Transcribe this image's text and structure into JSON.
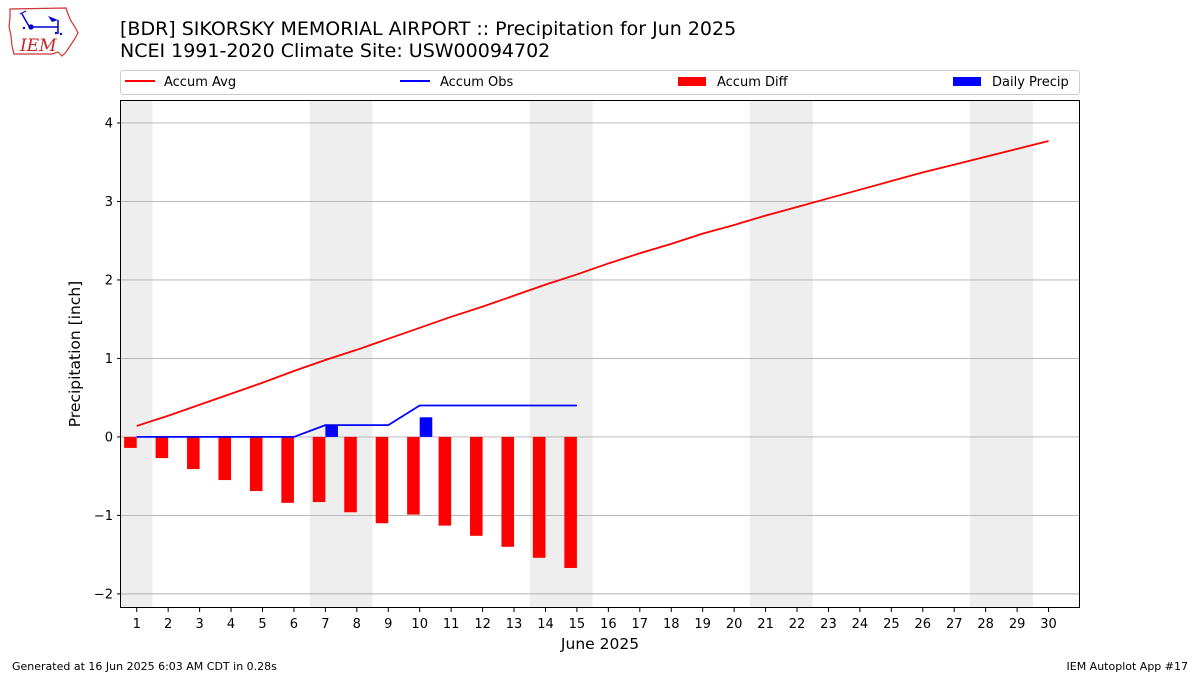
{
  "logo": {
    "text": "IEM",
    "icon": "iowa-state-outline-icon"
  },
  "footer": {
    "left": "Generated at 16 Jun 2025 6:03 AM CDT in 0.28s",
    "right": "IEM Autoplot App #17"
  },
  "chart_data": {
    "type": "bar",
    "title": "[BDR] SIKORSKY MEMORIAL AIRPORT :: Precipitation for Jun 2025",
    "subtitle": "NCEI 1991-2020 Climate Site: USW00094702",
    "xlabel": "June 2025",
    "ylabel": "Precipitation [inch]",
    "ylim": [
      -2.18,
      4.28
    ],
    "xlim": [
      0.5,
      31.0
    ],
    "yticks": [
      4,
      3,
      2,
      1,
      0,
      -1,
      -2
    ],
    "ytick_labels": [
      "4",
      "3",
      "2",
      "1",
      "0",
      "−1",
      "−2"
    ],
    "xticks": [
      1,
      2,
      3,
      4,
      5,
      6,
      7,
      8,
      9,
      10,
      11,
      12,
      13,
      14,
      15,
      16,
      17,
      18,
      19,
      20,
      21,
      22,
      23,
      24,
      25,
      26,
      27,
      28,
      29,
      30
    ],
    "xtick_labels": [
      "1",
      "2",
      "3",
      "4",
      "5",
      "6",
      "7",
      "8",
      "9",
      "10",
      "11",
      "12",
      "13",
      "14",
      "15",
      "16",
      "17",
      "18",
      "19",
      "20",
      "21",
      "22",
      "23",
      "24",
      "25",
      "26",
      "27",
      "28",
      "29",
      "30"
    ],
    "grid": "horizontal",
    "legend": {
      "placement": "top",
      "entries": [
        {
          "label": "Accum Avg",
          "kind": "line",
          "color": "#ff0000"
        },
        {
          "label": "Accum Obs",
          "kind": "line",
          "color": "#0000ff"
        },
        {
          "label": "Accum Diff",
          "kind": "bar",
          "color": "#ff0000"
        },
        {
          "label": "Daily Precip",
          "kind": "bar",
          "color": "#0000ff"
        }
      ]
    },
    "weekend_spans": [
      [
        0.5,
        1.5
      ],
      [
        6.5,
        8.5
      ],
      [
        13.5,
        15.5
      ],
      [
        20.5,
        22.5
      ],
      [
        27.5,
        29.5
      ]
    ],
    "weekend_color": "#eeeeee",
    "series": [
      {
        "name": "Accum Avg",
        "kind": "line",
        "color": "#ff0000",
        "x": [
          1,
          2,
          3,
          4,
          5,
          6,
          7,
          8,
          9,
          10,
          11,
          12,
          13,
          14,
          15,
          16,
          17,
          18,
          19,
          20,
          21,
          22,
          23,
          24,
          25,
          26,
          27,
          28,
          29,
          30
        ],
        "values": [
          0.14,
          0.27,
          0.41,
          0.55,
          0.69,
          0.84,
          0.98,
          1.11,
          1.25,
          1.39,
          1.53,
          1.66,
          1.8,
          1.94,
          2.07,
          2.21,
          2.34,
          2.46,
          2.59,
          2.7,
          2.82,
          2.93,
          3.04,
          3.15,
          3.26,
          3.37,
          3.47,
          3.57,
          3.67,
          3.77
        ]
      },
      {
        "name": "Accum Obs",
        "kind": "line",
        "color": "#0000ff",
        "x": [
          1,
          2,
          3,
          4,
          5,
          6,
          7,
          8,
          9,
          10,
          11,
          12,
          13,
          14,
          15
        ],
        "values": [
          0.0,
          0.0,
          0.0,
          0.0,
          0.0,
          0.0,
          0.15,
          0.15,
          0.15,
          0.4,
          0.4,
          0.4,
          0.4,
          0.4,
          0.4
        ]
      },
      {
        "name": "Accum Diff",
        "kind": "bar",
        "color": "#ff0000",
        "offset": -0.2,
        "x": [
          1,
          2,
          3,
          4,
          5,
          6,
          7,
          8,
          9,
          10,
          11,
          12,
          13,
          14,
          15
        ],
        "values": [
          -0.14,
          -0.27,
          -0.41,
          -0.55,
          -0.69,
          -0.84,
          -0.83,
          -0.96,
          -1.1,
          -0.99,
          -1.13,
          -1.26,
          -1.4,
          -1.54,
          -1.67
        ]
      },
      {
        "name": "Daily Precip",
        "kind": "bar",
        "color": "#0000ff",
        "offset": 0.2,
        "x": [
          1,
          2,
          3,
          4,
          5,
          6,
          7,
          8,
          9,
          10,
          11,
          12,
          13,
          14,
          15
        ],
        "values": [
          0,
          0,
          0,
          0,
          0,
          0,
          0.15,
          0,
          0,
          0.25,
          0,
          0,
          0,
          0,
          0
        ]
      }
    ]
  }
}
